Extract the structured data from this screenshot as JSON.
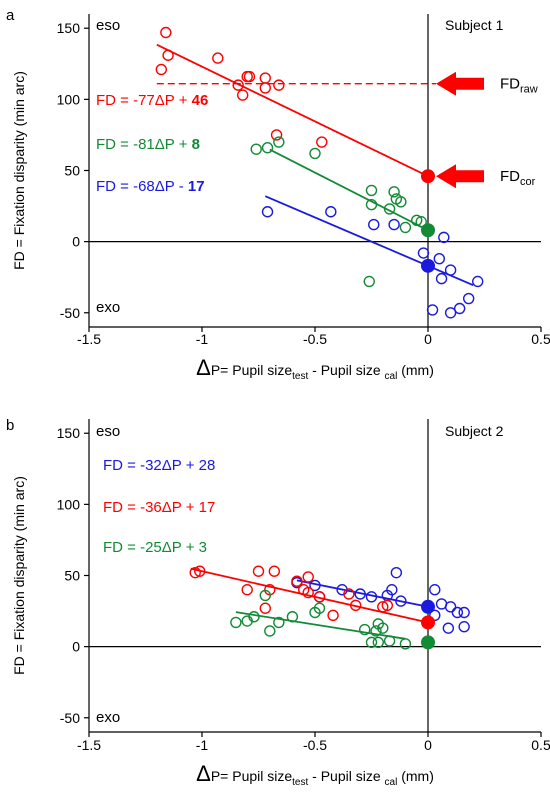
{
  "colors": {
    "red": "#ff0000",
    "green": "#138a36",
    "blue": "#1a1adf",
    "axis": "#000000"
  },
  "chart_data": [
    {
      "type": "scatter",
      "panel_letter": "a",
      "subject": "Subject 1",
      "corner_top": "eso",
      "corner_bottom": "exo",
      "ylabel": "FD = Fixation disparity (min arc)",
      "xlabel": {
        "delta": "Δ",
        "main": "P= Pupil size",
        "sub1": "test",
        "mid": " - Pupil size ",
        "sub2": "cal",
        "unit": " (mm)"
      },
      "xlim": [
        -1.5,
        0.5
      ],
      "ylim": [
        -60,
        160
      ],
      "xticks": [
        -1.5,
        -1,
        -0.5,
        0,
        0.5
      ],
      "xtick_labels": [
        "-1.5",
        "-1",
        "-0.5",
        "0",
        "0.5"
      ],
      "yticks": [
        -50,
        0,
        50,
        100,
        150
      ],
      "ytick_labels": [
        "-50",
        "0",
        "50",
        "100",
        "150"
      ],
      "series": [
        {
          "color": "red",
          "equation": {
            "prefix": "FD = -77ΔP + ",
            "constant": "46",
            "bold_constant": true
          },
          "fit": {
            "slope": -77,
            "intercept": 46,
            "x_range": [
              -1.2,
              0
            ]
          },
          "points": [
            [
              -1.16,
              147
            ],
            [
              -1.15,
              131
            ],
            [
              -1.18,
              121
            ],
            [
              -0.93,
              129
            ],
            [
              -0.8,
              116
            ],
            [
              -0.79,
              116
            ],
            [
              -0.82,
              103
            ],
            [
              -0.84,
              110
            ],
            [
              -0.72,
              115
            ],
            [
              -0.72,
              108
            ],
            [
              -0.66,
              110
            ],
            [
              -0.67,
              75
            ],
            [
              -0.47,
              70
            ]
          ]
        },
        {
          "color": "green",
          "equation": {
            "prefix": "FD = -81ΔP + ",
            "constant": "8",
            "bold_constant": true
          },
          "fit": {
            "slope": -81,
            "intercept": 8,
            "x_range": [
              -0.7,
              0
            ]
          },
          "points": [
            [
              -0.76,
              65
            ],
            [
              -0.71,
              66
            ],
            [
              -0.66,
              70
            ],
            [
              -0.5,
              62
            ],
            [
              -0.25,
              36
            ],
            [
              -0.15,
              35
            ],
            [
              -0.14,
              30
            ],
            [
              -0.12,
              28
            ],
            [
              -0.17,
              23
            ],
            [
              -0.25,
              26
            ],
            [
              -0.05,
              15
            ],
            [
              -0.03,
              14
            ],
            [
              -0.1,
              10
            ],
            [
              -0.26,
              -28
            ]
          ]
        },
        {
          "color": "blue",
          "equation": {
            "prefix": "FD = -68ΔP - ",
            "constant": "17",
            "bold_constant": true
          },
          "fit": {
            "slope": -68,
            "intercept": -17,
            "x_range": [
              -0.72,
              0.2
            ]
          },
          "points": [
            [
              -0.71,
              21
            ],
            [
              -0.43,
              21
            ],
            [
              -0.24,
              12
            ],
            [
              -0.15,
              12
            ],
            [
              0.07,
              3
            ],
            [
              -0.02,
              -8
            ],
            [
              0.05,
              -12
            ],
            [
              0.1,
              -20
            ],
            [
              0.06,
              -26
            ],
            [
              0.22,
              -28
            ],
            [
              0.18,
              -40
            ],
            [
              0.14,
              -47
            ],
            [
              0.1,
              -50
            ],
            [
              0.02,
              -48
            ]
          ]
        }
      ],
      "big_dots": [
        {
          "color": "red",
          "x": 0,
          "y": 46
        },
        {
          "color": "green",
          "x": 0,
          "y": 8
        },
        {
          "color": "blue",
          "x": 0,
          "y": -17
        }
      ],
      "dashed_line": {
        "color": "red",
        "y": 111,
        "x_range": [
          -1.2,
          0
        ]
      },
      "arrows": [
        {
          "y": 111,
          "label": "FD",
          "sub": "raw"
        },
        {
          "y": 46,
          "label": "FD",
          "sub": "cor"
        }
      ]
    },
    {
      "type": "scatter",
      "panel_letter": "b",
      "subject": "Subject 2",
      "corner_top": "eso",
      "corner_bottom": "exo",
      "ylabel": "FD = Fixation disparity (min arc)",
      "xlabel": {
        "delta": "Δ",
        "main": "P= Pupil size",
        "sub1": "test",
        "mid": " - Pupil size ",
        "sub2": "cal",
        "unit": " (mm)"
      },
      "xlim": [
        -1.5,
        0.5
      ],
      "ylim": [
        -60,
        160
      ],
      "xticks": [
        -1.5,
        -1,
        -0.5,
        0,
        0.5
      ],
      "xtick_labels": [
        "-1.5",
        "-1",
        "-0.5",
        "0",
        "0.5"
      ],
      "yticks": [
        -50,
        0,
        50,
        100,
        150
      ],
      "ytick_labels": [
        "-50",
        "0",
        "50",
        "100",
        "150"
      ],
      "series": [
        {
          "color": "blue",
          "equation": {
            "prefix": "FD = -32ΔP + ",
            "constant": "28",
            "bold_constant": false
          },
          "fit": {
            "slope": -32,
            "intercept": 28,
            "x_range": [
              -0.58,
              0
            ]
          },
          "points": [
            [
              -0.58,
              45
            ],
            [
              -0.5,
              43
            ],
            [
              -0.48,
              35
            ],
            [
              -0.38,
              40
            ],
            [
              -0.3,
              37
            ],
            [
              -0.25,
              35
            ],
            [
              -0.18,
              36
            ],
            [
              -0.16,
              40
            ],
            [
              -0.14,
              52
            ],
            [
              -0.12,
              32
            ],
            [
              0.03,
              40
            ],
            [
              0.06,
              30
            ],
            [
              0.1,
              28
            ],
            [
              0.13,
              24
            ],
            [
              0.16,
              24
            ],
            [
              0.03,
              22
            ],
            [
              0.09,
              13
            ],
            [
              0.16,
              14
            ]
          ]
        },
        {
          "color": "red",
          "equation": {
            "prefix": "FD = -36ΔP + ",
            "constant": "17",
            "bold_constant": false
          },
          "fit": {
            "slope": -36,
            "intercept": 17,
            "x_range": [
              -1.05,
              0
            ]
          },
          "points": [
            [
              -1.03,
              52
            ],
            [
              -1.01,
              53
            ],
            [
              -0.75,
              53
            ],
            [
              -0.68,
              53
            ],
            [
              -0.58,
              46
            ],
            [
              -0.53,
              49
            ],
            [
              -0.55,
              40
            ],
            [
              -0.53,
              38
            ],
            [
              -0.48,
              35
            ],
            [
              -0.35,
              37
            ],
            [
              -0.32,
              29
            ],
            [
              -0.2,
              28
            ],
            [
              -0.18,
              29
            ],
            [
              -0.42,
              22
            ],
            [
              -0.7,
              40
            ],
            [
              -0.8,
              40
            ],
            [
              -0.72,
              27
            ]
          ]
        },
        {
          "color": "green",
          "equation": {
            "prefix": "FD = -25ΔP + ",
            "constant": "3",
            "bold_constant": false
          },
          "fit": {
            "slope": -25,
            "intercept": 3,
            "x_range": [
              -0.85,
              -0.1
            ]
          },
          "points": [
            [
              -0.85,
              17
            ],
            [
              -0.8,
              18
            ],
            [
              -0.77,
              21
            ],
            [
              -0.72,
              36
            ],
            [
              -0.7,
              11
            ],
            [
              -0.66,
              17
            ],
            [
              -0.6,
              21
            ],
            [
              -0.5,
              24
            ],
            [
              -0.48,
              27
            ],
            [
              -0.28,
              12
            ],
            [
              -0.23,
              11
            ],
            [
              -0.2,
              13
            ],
            [
              -0.22,
              3
            ],
            [
              -0.25,
              3
            ],
            [
              -0.17,
              4
            ],
            [
              -0.1,
              2
            ],
            [
              -0.22,
              16
            ]
          ]
        }
      ],
      "big_dots": [
        {
          "color": "blue",
          "x": 0,
          "y": 28
        },
        {
          "color": "red",
          "x": 0,
          "y": 17
        },
        {
          "color": "green",
          "x": 0,
          "y": 3
        }
      ],
      "dashed_line": null,
      "arrows": []
    }
  ]
}
